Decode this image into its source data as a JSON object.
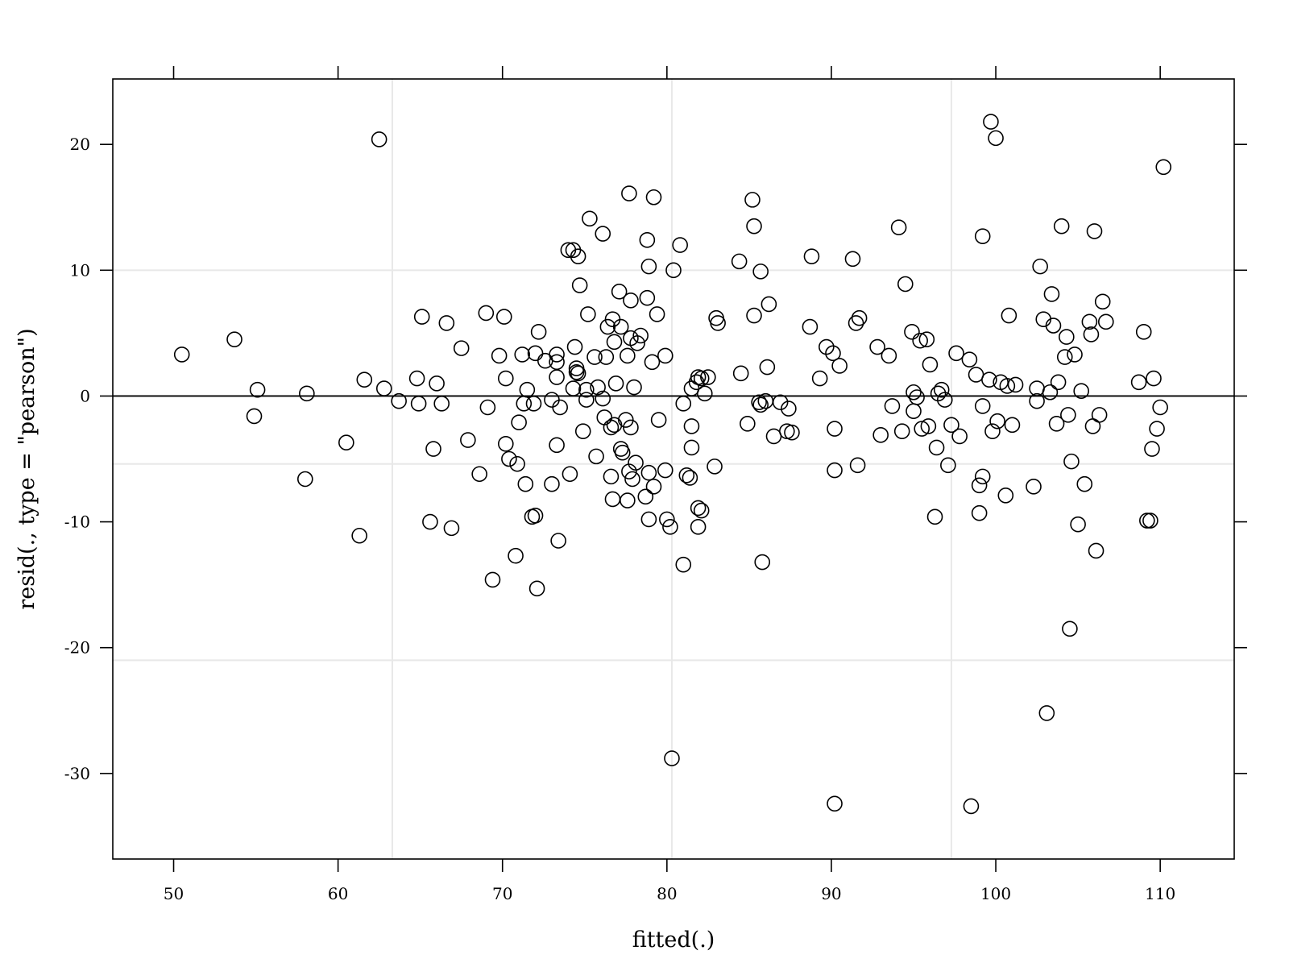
{
  "chart_data": {
    "type": "scatter",
    "xlabel": "fitted(.)",
    "ylabel": "resid(., type = \"pearson\")",
    "xlim": [
      46.3,
      114.5
    ],
    "ylim": [
      -36.8,
      25.2
    ],
    "x_ticks": [
      50,
      60,
      70,
      80,
      90,
      100,
      110
    ],
    "y_ticks": [
      20,
      10,
      0,
      -10,
      -20,
      -30
    ],
    "x_tick_labels": [
      "50",
      "60",
      "70",
      "80",
      "90",
      "100",
      "110"
    ],
    "y_tick_labels": [
      "20",
      "10",
      "0",
      "-10",
      "-20",
      "-30"
    ],
    "reference_line_y": 0,
    "grid_x": [
      63.3,
      80.3,
      97.3
    ],
    "grid_y": [
      10,
      -5.4,
      -21
    ],
    "colors": {
      "marker": "#000000",
      "grid": "#e8e8e8",
      "frame": "#000000"
    },
    "points": [
      [
        50.5,
        3.3
      ],
      [
        53.7,
        4.5
      ],
      [
        55.1,
        0.5
      ],
      [
        54.9,
        -1.6
      ],
      [
        58.1,
        0.2
      ],
      [
        58,
        -6.6
      ],
      [
        60.5,
        -3.7
      ],
      [
        61.6,
        1.3
      ],
      [
        61.3,
        -11.1
      ],
      [
        62.5,
        20.4
      ],
      [
        62.8,
        0.6
      ],
      [
        63.7,
        -0.4
      ],
      [
        64.8,
        1.4
      ],
      [
        64.9,
        -0.6
      ],
      [
        65.1,
        6.3
      ],
      [
        65.6,
        -10
      ],
      [
        65.8,
        -4.2
      ],
      [
        66,
        1
      ],
      [
        66.3,
        -0.6
      ],
      [
        66.6,
        5.8
      ],
      [
        66.9,
        -10.5
      ],
      [
        67.5,
        3.8
      ],
      [
        67.9,
        -3.5
      ],
      [
        68.6,
        -6.2
      ],
      [
        69,
        6.6
      ],
      [
        69.1,
        -0.9
      ],
      [
        69.4,
        -14.6
      ],
      [
        69.8,
        3.2
      ],
      [
        70.1,
        6.3
      ],
      [
        70.2,
        1.4
      ],
      [
        70.2,
        -3.8
      ],
      [
        70.4,
        -5
      ],
      [
        70.8,
        -12.7
      ],
      [
        70.9,
        -5.4
      ],
      [
        71,
        -2.1
      ],
      [
        71.2,
        3.3
      ],
      [
        71.3,
        -0.6
      ],
      [
        71.4,
        -7
      ],
      [
        71.5,
        0.5
      ],
      [
        71.8,
        -9.6
      ],
      [
        71.9,
        -0.6
      ],
      [
        72,
        3.4
      ],
      [
        72.0,
        -9.5
      ],
      [
        72.1,
        -15.3
      ],
      [
        72.2,
        5.1
      ],
      [
        72.6,
        2.8
      ],
      [
        73,
        -7
      ],
      [
        73,
        -0.3
      ],
      [
        73.3,
        3.3
      ],
      [
        73.3,
        2.7
      ],
      [
        73.3,
        1.5
      ],
      [
        73.3,
        -3.9
      ],
      [
        73.4,
        -11.5
      ],
      [
        73.5,
        -0.9
      ],
      [
        74,
        11.6
      ],
      [
        74.1,
        -6.2
      ],
      [
        74.3,
        11.6
      ],
      [
        74.4,
        3.9
      ],
      [
        74.3,
        0.6
      ],
      [
        74.5,
        2.2
      ],
      [
        74.5,
        1.9
      ],
      [
        74.6,
        1.8
      ],
      [
        74.6,
        11.1
      ],
      [
        74.7,
        8.8
      ],
      [
        74.9,
        -2.8
      ],
      [
        75.1,
        0.5
      ],
      [
        75.2,
        6.5
      ],
      [
        75.1,
        -0.3
      ],
      [
        75.3,
        14.1
      ],
      [
        75.6,
        3.1
      ],
      [
        75.8,
        0.7
      ],
      [
        75.7,
        -4.8
      ],
      [
        76.1,
        12.9
      ],
      [
        76.1,
        -0.2
      ],
      [
        76.2,
        -1.7
      ],
      [
        76.3,
        3.1
      ],
      [
        76.4,
        5.5
      ],
      [
        76.6,
        -2.5
      ],
      [
        76.6,
        -6.4
      ],
      [
        76.7,
        6.1
      ],
      [
        76.8,
        4.3
      ],
      [
        76.8,
        -2.3
      ],
      [
        76.7,
        -8.2
      ],
      [
        76.9,
        1
      ],
      [
        77.1,
        8.3
      ],
      [
        77.2,
        5.5
      ],
      [
        77.2,
        -4.2
      ],
      [
        77.3,
        -4.5
      ],
      [
        77.5,
        -1.9
      ],
      [
        77.6,
        3.2
      ],
      [
        77.7,
        -6
      ],
      [
        77.6,
        -8.3
      ],
      [
        77.7,
        16.1
      ],
      [
        77.8,
        -2.5
      ],
      [
        77.8,
        4.6
      ],
      [
        77.8,
        7.6
      ],
      [
        77.9,
        -6.6
      ],
      [
        78,
        0.7
      ],
      [
        78.2,
        4.2
      ],
      [
        78.1,
        -5.3
      ],
      [
        78.4,
        4.8
      ],
      [
        78.7,
        -8
      ],
      [
        78.8,
        12.4
      ],
      [
        78.8,
        7.8
      ],
      [
        78.9,
        10.3
      ],
      [
        78.9,
        -6.1
      ],
      [
        78.9,
        -9.8
      ],
      [
        79.1,
        2.7
      ],
      [
        79.2,
        15.8
      ],
      [
        79.2,
        -7.2
      ],
      [
        79.4,
        6.5
      ],
      [
        79.5,
        -1.9
      ],
      [
        79.9,
        3.2
      ],
      [
        79.9,
        -5.9
      ],
      [
        80.0,
        -9.8
      ],
      [
        80.2,
        -10.4
      ],
      [
        80.3,
        -28.8
      ],
      [
        80.4,
        10
      ],
      [
        80.8,
        12
      ],
      [
        81,
        -0.6
      ],
      [
        81,
        -13.4
      ],
      [
        81.2,
        -6.3
      ],
      [
        81.4,
        -6.5
      ],
      [
        81.5,
        0.6
      ],
      [
        81.5,
        -2.4
      ],
      [
        81.5,
        -4.1
      ],
      [
        81.8,
        1.1
      ],
      [
        81.9,
        1.5
      ],
      [
        81.9,
        -10.4
      ],
      [
        81.9,
        -8.9
      ],
      [
        82.1,
        1.4
      ],
      [
        82.1,
        -9.1
      ],
      [
        82.3,
        0.2
      ],
      [
        82.5,
        1.5
      ],
      [
        82.9,
        -5.6
      ],
      [
        83,
        6.2
      ],
      [
        83.1,
        5.8
      ],
      [
        84.4,
        10.7
      ],
      [
        84.5,
        1.8
      ],
      [
        84.9,
        -2.2
      ],
      [
        85.2,
        15.6
      ],
      [
        85.3,
        13.5
      ],
      [
        85.3,
        6.4
      ],
      [
        85.6,
        -0.5
      ],
      [
        85.7,
        9.9
      ],
      [
        85.7,
        -0.7
      ],
      [
        85.8,
        -13.2
      ],
      [
        86,
        -0.4
      ],
      [
        86.1,
        2.3
      ],
      [
        86.2,
        7.3
      ],
      [
        86.5,
        -3.2
      ],
      [
        86.9,
        -0.5
      ],
      [
        87.3,
        -2.8
      ],
      [
        87.4,
        -1
      ],
      [
        87.6,
        -2.9
      ],
      [
        88.7,
        5.5
      ],
      [
        88.8,
        11.1
      ],
      [
        89.3,
        1.4
      ],
      [
        89.7,
        3.9
      ],
      [
        90.1,
        3.4
      ],
      [
        90.2,
        -2.6
      ],
      [
        90.2,
        -5.9
      ],
      [
        90.2,
        -32.4
      ],
      [
        90.5,
        2.4
      ],
      [
        91.3,
        10.9
      ],
      [
        91.5,
        5.8
      ],
      [
        91.6,
        -5.5
      ],
      [
        91.7,
        6.2
      ],
      [
        92.8,
        3.9
      ],
      [
        93,
        -3.1
      ],
      [
        93.5,
        3.2
      ],
      [
        93.7,
        -0.8
      ],
      [
        94.1,
        13.4
      ],
      [
        94.3,
        -2.8
      ],
      [
        94.5,
        8.9
      ],
      [
        94.9,
        5.1
      ],
      [
        95,
        0.3
      ],
      [
        95,
        -1.2
      ],
      [
        95.2,
        -0.1
      ],
      [
        95.4,
        4.4
      ],
      [
        95.5,
        -2.6
      ],
      [
        95.8,
        4.5
      ],
      [
        95.9,
        -2.4
      ],
      [
        96,
        2.5
      ],
      [
        96.3,
        -9.6
      ],
      [
        96.4,
        -4.1
      ],
      [
        96.5,
        0.2
      ],
      [
        96.7,
        0.5
      ],
      [
        96.9,
        -0.3
      ],
      [
        97.1,
        -5.5
      ],
      [
        97.3,
        -2.3
      ],
      [
        97.6,
        3.4
      ],
      [
        97.8,
        -3.2
      ],
      [
        98.4,
        2.9
      ],
      [
        98.5,
        -32.6
      ],
      [
        98.8,
        1.7
      ],
      [
        99,
        -7.1
      ],
      [
        99,
        -9.3
      ],
      [
        99.2,
        12.7
      ],
      [
        99.2,
        -0.8
      ],
      [
        99.2,
        -6.4
      ],
      [
        99.6,
        1.3
      ],
      [
        99.7,
        21.8
      ],
      [
        99.8,
        -2.8
      ],
      [
        100,
        20.5
      ],
      [
        100.1,
        -2
      ],
      [
        100.3,
        1.1
      ],
      [
        100.6,
        -7.9
      ],
      [
        100.8,
        6.4
      ],
      [
        100.7,
        0.8
      ],
      [
        101,
        -2.3
      ],
      [
        101.2,
        0.9
      ],
      [
        102.3,
        -7.2
      ],
      [
        102.5,
        0.6
      ],
      [
        102.5,
        -0.4
      ],
      [
        102.7,
        10.3
      ],
      [
        102.9,
        6.1
      ],
      [
        103.1,
        -25.2
      ],
      [
        103.3,
        0.3
      ],
      [
        103.4,
        8.1
      ],
      [
        103.5,
        5.6
      ],
      [
        103.7,
        -2.2
      ],
      [
        103.8,
        1.1
      ],
      [
        104,
        13.5
      ],
      [
        104.2,
        3.1
      ],
      [
        104.3,
        4.7
      ],
      [
        104.4,
        -1.5
      ],
      [
        104.5,
        -18.5
      ],
      [
        104.6,
        -5.2
      ],
      [
        104.8,
        3.3
      ],
      [
        105,
        -10.2
      ],
      [
        105.2,
        0.4
      ],
      [
        105.4,
        -7
      ],
      [
        105.7,
        5.9
      ],
      [
        105.8,
        4.9
      ],
      [
        105.9,
        -2.4
      ],
      [
        106,
        13.1
      ],
      [
        106.1,
        -12.3
      ],
      [
        106.3,
        -1.5
      ],
      [
        106.5,
        7.5
      ],
      [
        106.7,
        5.9
      ],
      [
        108.7,
        1.1
      ],
      [
        109,
        5.1
      ],
      [
        109.2,
        -9.9
      ],
      [
        109.4,
        -9.9
      ],
      [
        109.5,
        -4.2
      ],
      [
        109.6,
        1.4
      ],
      [
        109.8,
        -2.6
      ],
      [
        110,
        -0.9
      ],
      [
        110.2,
        18.2
      ]
    ]
  }
}
